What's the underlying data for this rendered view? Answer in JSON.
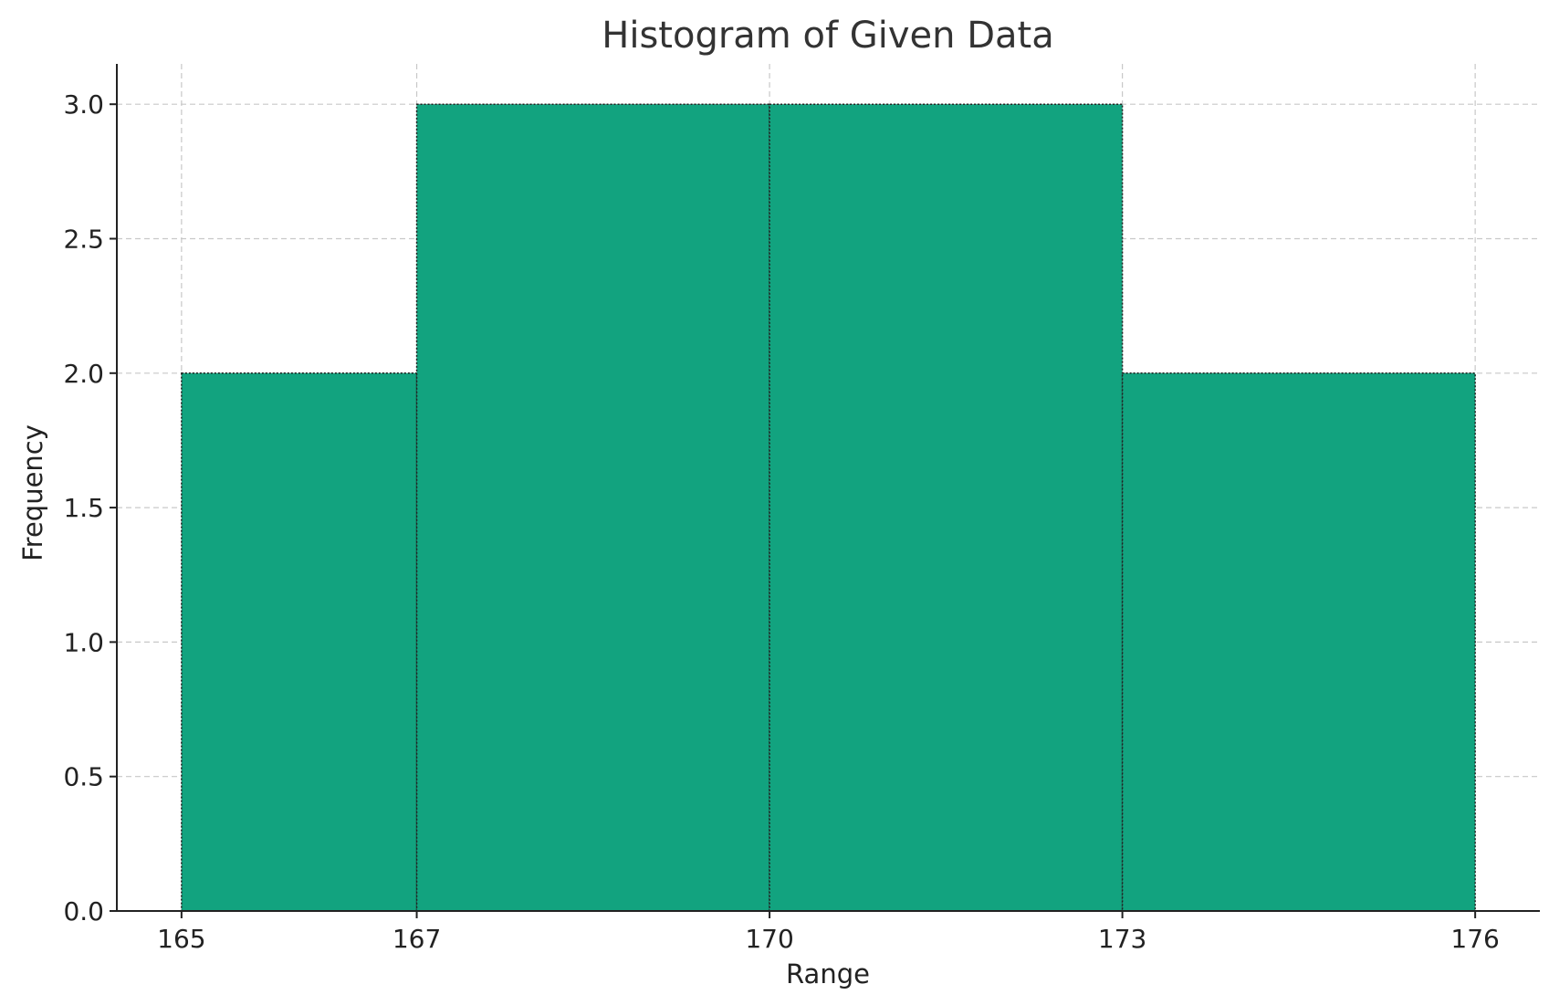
{
  "chart_data": {
    "type": "bar",
    "title": "Histogram of Given Data",
    "xlabel": "Range",
    "ylabel": "Frequency",
    "bins": [
      {
        "start": 165,
        "end": 167,
        "value": 2
      },
      {
        "start": 167,
        "end": 170,
        "value": 3
      },
      {
        "start": 170,
        "end": 173,
        "value": 3
      },
      {
        "start": 173,
        "end": 176,
        "value": 2
      }
    ],
    "xticks": [
      165,
      167,
      170,
      173,
      176
    ],
    "xtick_labels": [
      "165",
      "167",
      "170",
      "173",
      "176"
    ],
    "yticks": [
      0.0,
      0.5,
      1.0,
      1.5,
      2.0,
      2.5,
      3.0
    ],
    "ytick_labels": [
      "0.0",
      "0.5",
      "1.0",
      "1.5",
      "2.0",
      "2.5",
      "3.0"
    ],
    "xlim": [
      164.45,
      176.55
    ],
    "ylim": [
      0,
      3.15
    ],
    "grid": true,
    "colors": {
      "bar": "#12a37f",
      "edge": "#222222",
      "grid": "#c8c8c8"
    }
  }
}
